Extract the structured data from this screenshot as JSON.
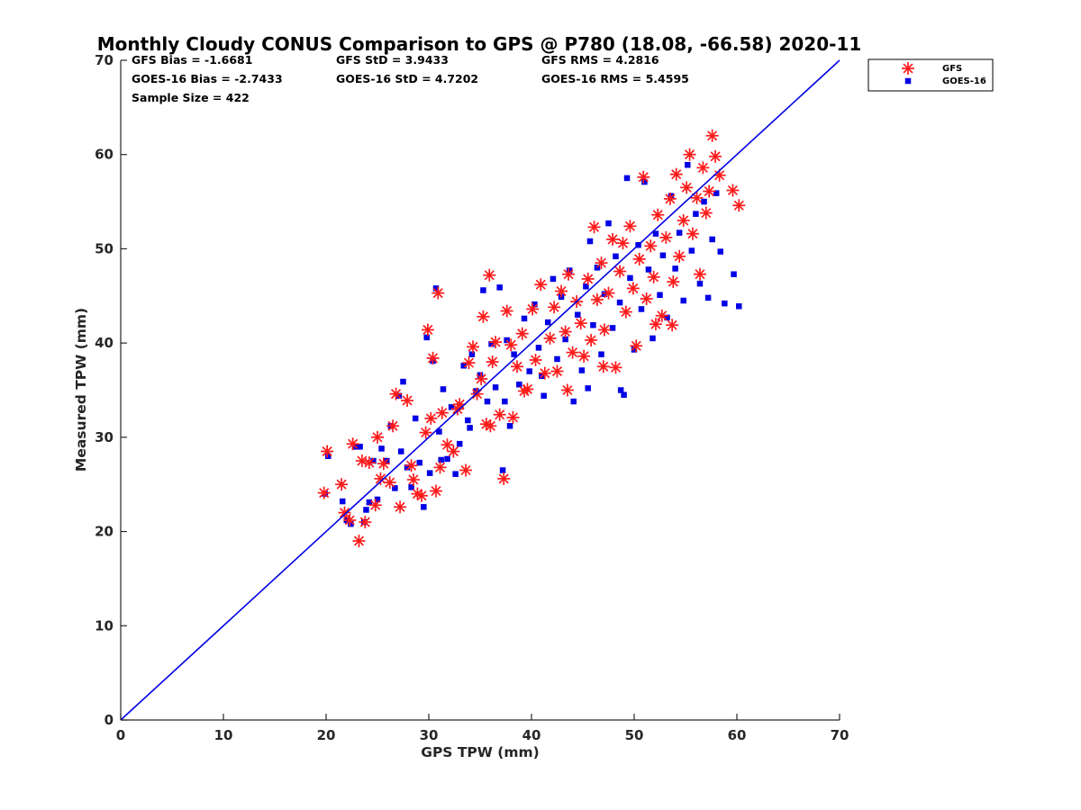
{
  "chart_data": {
    "type": "scatter",
    "title": "Monthly Cloudy CONUS Comparison to GPS @ P780 (18.08, -66.58) 2020-11",
    "xlabel": "GPS TPW (mm)",
    "ylabel": "Measured TPW (mm)",
    "xlim": [
      0,
      70
    ],
    "ylim": [
      0,
      70
    ],
    "xticks": [
      "0",
      "10",
      "20",
      "30",
      "40",
      "50",
      "60",
      "70"
    ],
    "yticks": [
      "0",
      "10",
      "20",
      "30",
      "40",
      "50",
      "60",
      "70"
    ],
    "legend_position": "outside-top-right",
    "grid": false,
    "stats": {
      "gfs_bias": "GFS Bias = -1.6681",
      "goes_bias": "GOES-16 Bias = -2.7433",
      "sample_size": "Sample Size = 422",
      "gfs_std": "GFS StD = 3.9433",
      "goes_std": "GOES-16 StD = 4.7202",
      "gfs_rms": "GFS RMS = 4.2816",
      "goes_rms": "GOES-16 RMS = 5.4595"
    },
    "reference_line": {
      "x": [
        0,
        70
      ],
      "y": [
        0,
        70
      ],
      "color": "#0000e6"
    },
    "series": [
      {
        "name": "GFS",
        "marker": "asterisk",
        "color": "#ff1a1a",
        "points": [
          [
            19.8,
            24.1
          ],
          [
            20.1,
            28.5
          ],
          [
            21.5,
            25.0
          ],
          [
            21.8,
            22.0
          ],
          [
            22.3,
            21.2
          ],
          [
            22.6,
            29.3
          ],
          [
            23.2,
            19.0
          ],
          [
            23.5,
            27.5
          ],
          [
            23.8,
            21.0
          ],
          [
            24.2,
            27.3
          ],
          [
            24.8,
            22.8
          ],
          [
            25.0,
            30.0
          ],
          [
            25.6,
            27.2
          ],
          [
            26.2,
            25.2
          ],
          [
            26.5,
            31.2
          ],
          [
            26.8,
            34.6
          ],
          [
            27.2,
            22.6
          ],
          [
            27.9,
            33.9
          ],
          [
            28.3,
            27.0
          ],
          [
            28.9,
            24.0
          ],
          [
            29.3,
            23.8
          ],
          [
            29.7,
            30.5
          ],
          [
            29.9,
            41.4
          ],
          [
            30.2,
            32.0
          ],
          [
            30.4,
            38.4
          ],
          [
            30.7,
            24.3
          ],
          [
            30.9,
            45.3
          ],
          [
            31.1,
            26.8
          ],
          [
            31.3,
            32.6
          ],
          [
            31.8,
            29.2
          ],
          [
            32.4,
            28.5
          ],
          [
            33.0,
            33.5
          ],
          [
            33.6,
            26.5
          ],
          [
            33.9,
            37.9
          ],
          [
            34.3,
            39.6
          ],
          [
            34.7,
            34.6
          ],
          [
            35.1,
            36.2
          ],
          [
            35.3,
            42.8
          ],
          [
            35.6,
            31.4
          ],
          [
            35.9,
            47.2
          ],
          [
            36.2,
            38.0
          ],
          [
            36.5,
            40.1
          ],
          [
            36.9,
            32.4
          ],
          [
            37.3,
            25.6
          ],
          [
            37.6,
            43.4
          ],
          [
            38.0,
            39.8
          ],
          [
            38.2,
            32.1
          ],
          [
            38.6,
            37.5
          ],
          [
            39.1,
            41.0
          ],
          [
            39.6,
            35.1
          ],
          [
            40.1,
            43.6
          ],
          [
            40.4,
            38.2
          ],
          [
            40.9,
            46.2
          ],
          [
            41.3,
            36.8
          ],
          [
            41.8,
            40.5
          ],
          [
            42.2,
            43.8
          ],
          [
            42.5,
            37.0
          ],
          [
            42.9,
            45.5
          ],
          [
            43.3,
            41.2
          ],
          [
            43.6,
            47.3
          ],
          [
            44.0,
            39.0
          ],
          [
            44.4,
            44.4
          ],
          [
            44.8,
            42.1
          ],
          [
            45.1,
            38.6
          ],
          [
            45.5,
            46.8
          ],
          [
            45.8,
            40.3
          ],
          [
            46.1,
            52.3
          ],
          [
            46.4,
            44.6
          ],
          [
            46.8,
            48.5
          ],
          [
            47.1,
            41.4
          ],
          [
            47.5,
            45.3
          ],
          [
            47.9,
            51.0
          ],
          [
            48.2,
            37.4
          ],
          [
            48.6,
            47.6
          ],
          [
            48.9,
            50.6
          ],
          [
            49.2,
            43.3
          ],
          [
            49.6,
            52.4
          ],
          [
            49.9,
            45.8
          ],
          [
            50.2,
            39.7
          ],
          [
            50.5,
            48.9
          ],
          [
            50.9,
            57.6
          ],
          [
            51.2,
            44.7
          ],
          [
            51.6,
            50.3
          ],
          [
            51.9,
            47.0
          ],
          [
            52.3,
            53.6
          ],
          [
            52.7,
            42.9
          ],
          [
            53.1,
            51.2
          ],
          [
            53.5,
            55.3
          ],
          [
            53.8,
            46.5
          ],
          [
            54.1,
            57.9
          ],
          [
            54.4,
            49.2
          ],
          [
            54.8,
            53.0
          ],
          [
            55.1,
            56.5
          ],
          [
            55.4,
            60.0
          ],
          [
            55.7,
            51.6
          ],
          [
            56.1,
            55.4
          ],
          [
            56.4,
            47.3
          ],
          [
            56.7,
            58.6
          ],
          [
            57.0,
            53.8
          ],
          [
            57.3,
            56.1
          ],
          [
            57.6,
            62.0
          ],
          [
            57.9,
            59.8
          ],
          [
            58.3,
            57.8
          ],
          [
            59.6,
            56.2
          ],
          [
            60.2,
            54.6
          ],
          [
            52.1,
            42.0
          ],
          [
            53.7,
            41.9
          ],
          [
            47.0,
            37.5
          ],
          [
            43.5,
            35.0
          ],
          [
            39.3,
            34.9
          ],
          [
            36.0,
            31.2
          ],
          [
            32.8,
            33.0
          ],
          [
            28.5,
            25.5
          ],
          [
            25.3,
            25.6
          ]
        ]
      },
      {
        "name": "GOES-16",
        "marker": "square",
        "color": "#0000e6",
        "points": [
          [
            19.9,
            24.0
          ],
          [
            20.2,
            28.0
          ],
          [
            21.6,
            23.2
          ],
          [
            22.0,
            21.2
          ],
          [
            22.4,
            20.8
          ],
          [
            22.8,
            29.0
          ],
          [
            23.3,
            29.0
          ],
          [
            23.7,
            21.0
          ],
          [
            24.2,
            23.1
          ],
          [
            24.6,
            27.5
          ],
          [
            25.0,
            23.4
          ],
          [
            25.4,
            28.8
          ],
          [
            25.9,
            27.5
          ],
          [
            26.3,
            31.2
          ],
          [
            26.7,
            24.6
          ],
          [
            27.1,
            34.4
          ],
          [
            27.5,
            35.9
          ],
          [
            27.9,
            26.8
          ],
          [
            28.3,
            24.7
          ],
          [
            28.7,
            32.0
          ],
          [
            29.1,
            27.3
          ],
          [
            29.5,
            22.6
          ],
          [
            29.8,
            40.6
          ],
          [
            30.1,
            26.2
          ],
          [
            30.4,
            38.1
          ],
          [
            30.7,
            45.8
          ],
          [
            31.0,
            30.6
          ],
          [
            31.4,
            35.1
          ],
          [
            31.8,
            27.7
          ],
          [
            32.2,
            33.2
          ],
          [
            32.6,
            26.1
          ],
          [
            33.0,
            29.3
          ],
          [
            33.4,
            37.6
          ],
          [
            33.8,
            31.8
          ],
          [
            34.2,
            38.8
          ],
          [
            34.6,
            34.9
          ],
          [
            35.0,
            36.6
          ],
          [
            35.3,
            45.6
          ],
          [
            35.7,
            33.8
          ],
          [
            36.1,
            39.9
          ],
          [
            36.5,
            35.3
          ],
          [
            36.9,
            45.9
          ],
          [
            37.2,
            26.5
          ],
          [
            37.6,
            40.3
          ],
          [
            37.9,
            31.2
          ],
          [
            38.3,
            38.8
          ],
          [
            38.8,
            35.6
          ],
          [
            39.3,
            42.6
          ],
          [
            39.8,
            37.0
          ],
          [
            40.3,
            44.1
          ],
          [
            40.7,
            39.5
          ],
          [
            41.2,
            34.4
          ],
          [
            41.6,
            42.2
          ],
          [
            42.1,
            46.8
          ],
          [
            42.5,
            38.3
          ],
          [
            42.9,
            44.9
          ],
          [
            43.3,
            40.4
          ],
          [
            43.7,
            47.7
          ],
          [
            44.1,
            33.8
          ],
          [
            44.5,
            43.0
          ],
          [
            44.9,
            37.1
          ],
          [
            45.3,
            46.0
          ],
          [
            45.7,
            50.8
          ],
          [
            46.0,
            41.9
          ],
          [
            46.4,
            48.0
          ],
          [
            46.8,
            38.8
          ],
          [
            47.1,
            45.2
          ],
          [
            47.5,
            52.7
          ],
          [
            47.9,
            41.6
          ],
          [
            48.2,
            49.2
          ],
          [
            48.6,
            44.3
          ],
          [
            49.0,
            34.5
          ],
          [
            49.3,
            57.5
          ],
          [
            49.6,
            46.9
          ],
          [
            50.0,
            39.3
          ],
          [
            50.4,
            50.4
          ],
          [
            50.7,
            43.6
          ],
          [
            51.0,
            57.1
          ],
          [
            51.4,
            47.8
          ],
          [
            51.8,
            40.5
          ],
          [
            52.1,
            51.6
          ],
          [
            52.5,
            45.1
          ],
          [
            52.8,
            49.3
          ],
          [
            53.2,
            42.7
          ],
          [
            53.6,
            55.6
          ],
          [
            54.0,
            47.9
          ],
          [
            54.4,
            51.7
          ],
          [
            54.8,
            44.5
          ],
          [
            55.2,
            58.9
          ],
          [
            55.6,
            49.8
          ],
          [
            56.0,
            53.7
          ],
          [
            56.4,
            46.3
          ],
          [
            56.8,
            55.0
          ],
          [
            57.2,
            44.8
          ],
          [
            57.6,
            51.0
          ],
          [
            58.0,
            55.9
          ],
          [
            58.4,
            49.7
          ],
          [
            58.8,
            44.2
          ],
          [
            59.7,
            47.3
          ],
          [
            60.2,
            43.9
          ],
          [
            45.5,
            35.2
          ],
          [
            48.7,
            35.0
          ],
          [
            41.0,
            36.5
          ],
          [
            37.4,
            33.8
          ],
          [
            34.0,
            31.0
          ],
          [
            31.2,
            27.6
          ],
          [
            27.3,
            28.5
          ],
          [
            23.9,
            22.3
          ]
        ]
      }
    ]
  }
}
